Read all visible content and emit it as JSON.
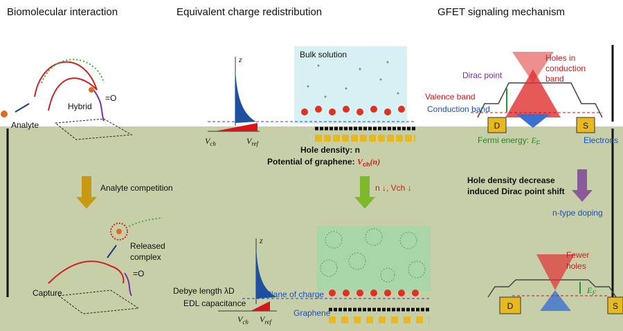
{
  "headers": [
    "Biomolecular interaction",
    "Equivalent charge redistribution",
    "GFET signaling mechanism"
  ],
  "left": {
    "analyte": "Analyte",
    "hybrid": "Hybrid",
    "carbonyl": "=O",
    "competition": "Analyte competition",
    "released": [
      "Released",
      "complex"
    ],
    "capture": "Capture"
  },
  "middle": {
    "bulk": "Bulk solution",
    "z": "z",
    "vch": {
      "main": "V",
      "sub": "ch"
    },
    "vref": {
      "main": "V",
      "sub": "ref"
    },
    "hole_density": "Hole density: n",
    "potential": [
      "Potential of graphene: ",
      "V",
      "ch",
      "(n)"
    ],
    "shift": "n ↓, Vch ↓",
    "debye": "Debye length λD",
    "edl": "EDL capacitance",
    "plane": "Plane of charge",
    "graphene": "Graphene"
  },
  "right": {
    "dirac": "Dirac point",
    "holes": [
      "Holes in",
      "conduction",
      "band"
    ],
    "valence": "Valence band",
    "conduction": "Conduction band",
    "d": "D",
    "s": "S",
    "fermi": [
      "Fermi energy: ",
      "E",
      "F"
    ],
    "electrons": "Electrons",
    "decrease": [
      "Hole density decrease",
      "induced Dirac point shift"
    ],
    "ntype": "n-type doping",
    "fewer": [
      "Fewer",
      "holes"
    ]
  }
}
